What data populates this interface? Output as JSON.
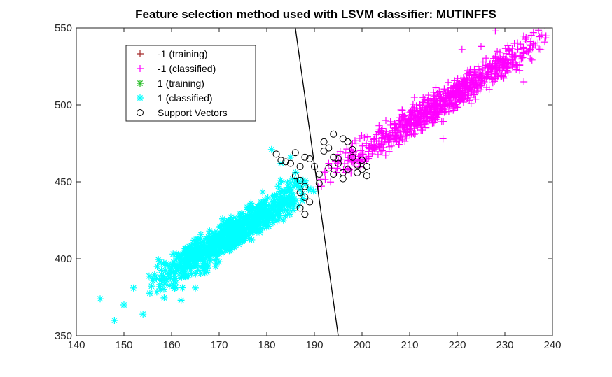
{
  "chart_data": {
    "type": "scatter",
    "title": "Feature selection method used with LSVM classifier: MUTINFFS",
    "xlabel": "",
    "ylabel": "",
    "xlim": [
      140,
      240
    ],
    "ylim": [
      350,
      550
    ],
    "xticks": [
      "140",
      "150",
      "160",
      "170",
      "180",
      "190",
      "200",
      "210",
      "220",
      "230",
      "240"
    ],
    "yticks": [
      "350",
      "400",
      "450",
      "500",
      "550"
    ],
    "legend_position": "top-left",
    "series": [
      {
        "name": "-1 (training)",
        "marker": "+",
        "color": "#a52a2a",
        "points": []
      },
      {
        "name": "-1 (classified)",
        "marker": "+",
        "color": "#ff00ff",
        "band": {
          "x_range": [
            190,
            240
          ],
          "slope": 1.93,
          "intercept": 83,
          "spread": 7,
          "count": 900
        },
        "points": [
          [
            238,
            546
          ],
          [
            236,
            547
          ],
          [
            228,
            548
          ],
          [
            232,
            540
          ],
          [
            225,
            538
          ],
          [
            221,
            536
          ],
          [
            234,
            515
          ],
          [
            217,
            478
          ],
          [
            198,
            475
          ],
          [
            193,
            462
          ],
          [
            205,
            490
          ],
          [
            211,
            505
          ]
        ]
      },
      {
        "name": "1 (training)",
        "marker": "*",
        "color": "#22bb22",
        "points": []
      },
      {
        "name": "1 (classified)",
        "marker": "*",
        "color": "#00ffff",
        "band": {
          "x_range": [
            153,
            190
          ],
          "slope": 1.93,
          "intercept": 83,
          "spread": 8,
          "count": 900
        },
        "points": [
          [
            145,
            374
          ],
          [
            148,
            360
          ],
          [
            150,
            370
          ],
          [
            152,
            381
          ],
          [
            154,
            364
          ],
          [
            156,
            386
          ],
          [
            157,
            395
          ],
          [
            181,
            471
          ],
          [
            185,
            466
          ],
          [
            183,
            462
          ],
          [
            162,
            373
          ],
          [
            165,
            381
          ],
          [
            170,
            398
          ],
          [
            175,
            412
          ],
          [
            178,
            428
          ]
        ]
      },
      {
        "name": "Support Vectors",
        "marker": "o",
        "color": "#000000",
        "points": [
          [
            182,
            468
          ],
          [
            183,
            464
          ],
          [
            184,
            463
          ],
          [
            186,
            469
          ],
          [
            185,
            462
          ],
          [
            187,
            460
          ],
          [
            188,
            466
          ],
          [
            186,
            454
          ],
          [
            187,
            451
          ],
          [
            188,
            447
          ],
          [
            187,
            443
          ],
          [
            188,
            440
          ],
          [
            189,
            437
          ],
          [
            187,
            433
          ],
          [
            188,
            429
          ],
          [
            189,
            465
          ],
          [
            190,
            460
          ],
          [
            191,
            455
          ],
          [
            191,
            449
          ],
          [
            192,
            470
          ],
          [
            192,
            476
          ],
          [
            193,
            472
          ],
          [
            194,
            466
          ],
          [
            193,
            459
          ],
          [
            194,
            455
          ],
          [
            195,
            465
          ],
          [
            195,
            462
          ],
          [
            196,
            456
          ],
          [
            196,
            452
          ],
          [
            197,
            458
          ],
          [
            197,
            476
          ],
          [
            198,
            471
          ],
          [
            198,
            466
          ],
          [
            199,
            456
          ],
          [
            199,
            461
          ],
          [
            200,
            464
          ],
          [
            200,
            458
          ],
          [
            201,
            460
          ],
          [
            201,
            454
          ],
          [
            194,
            481
          ],
          [
            196,
            478
          ]
        ]
      }
    ],
    "decision_boundary": {
      "points": [
        [
          186,
          550
        ],
        [
          195,
          350
        ]
      ],
      "color": "#000000"
    }
  }
}
